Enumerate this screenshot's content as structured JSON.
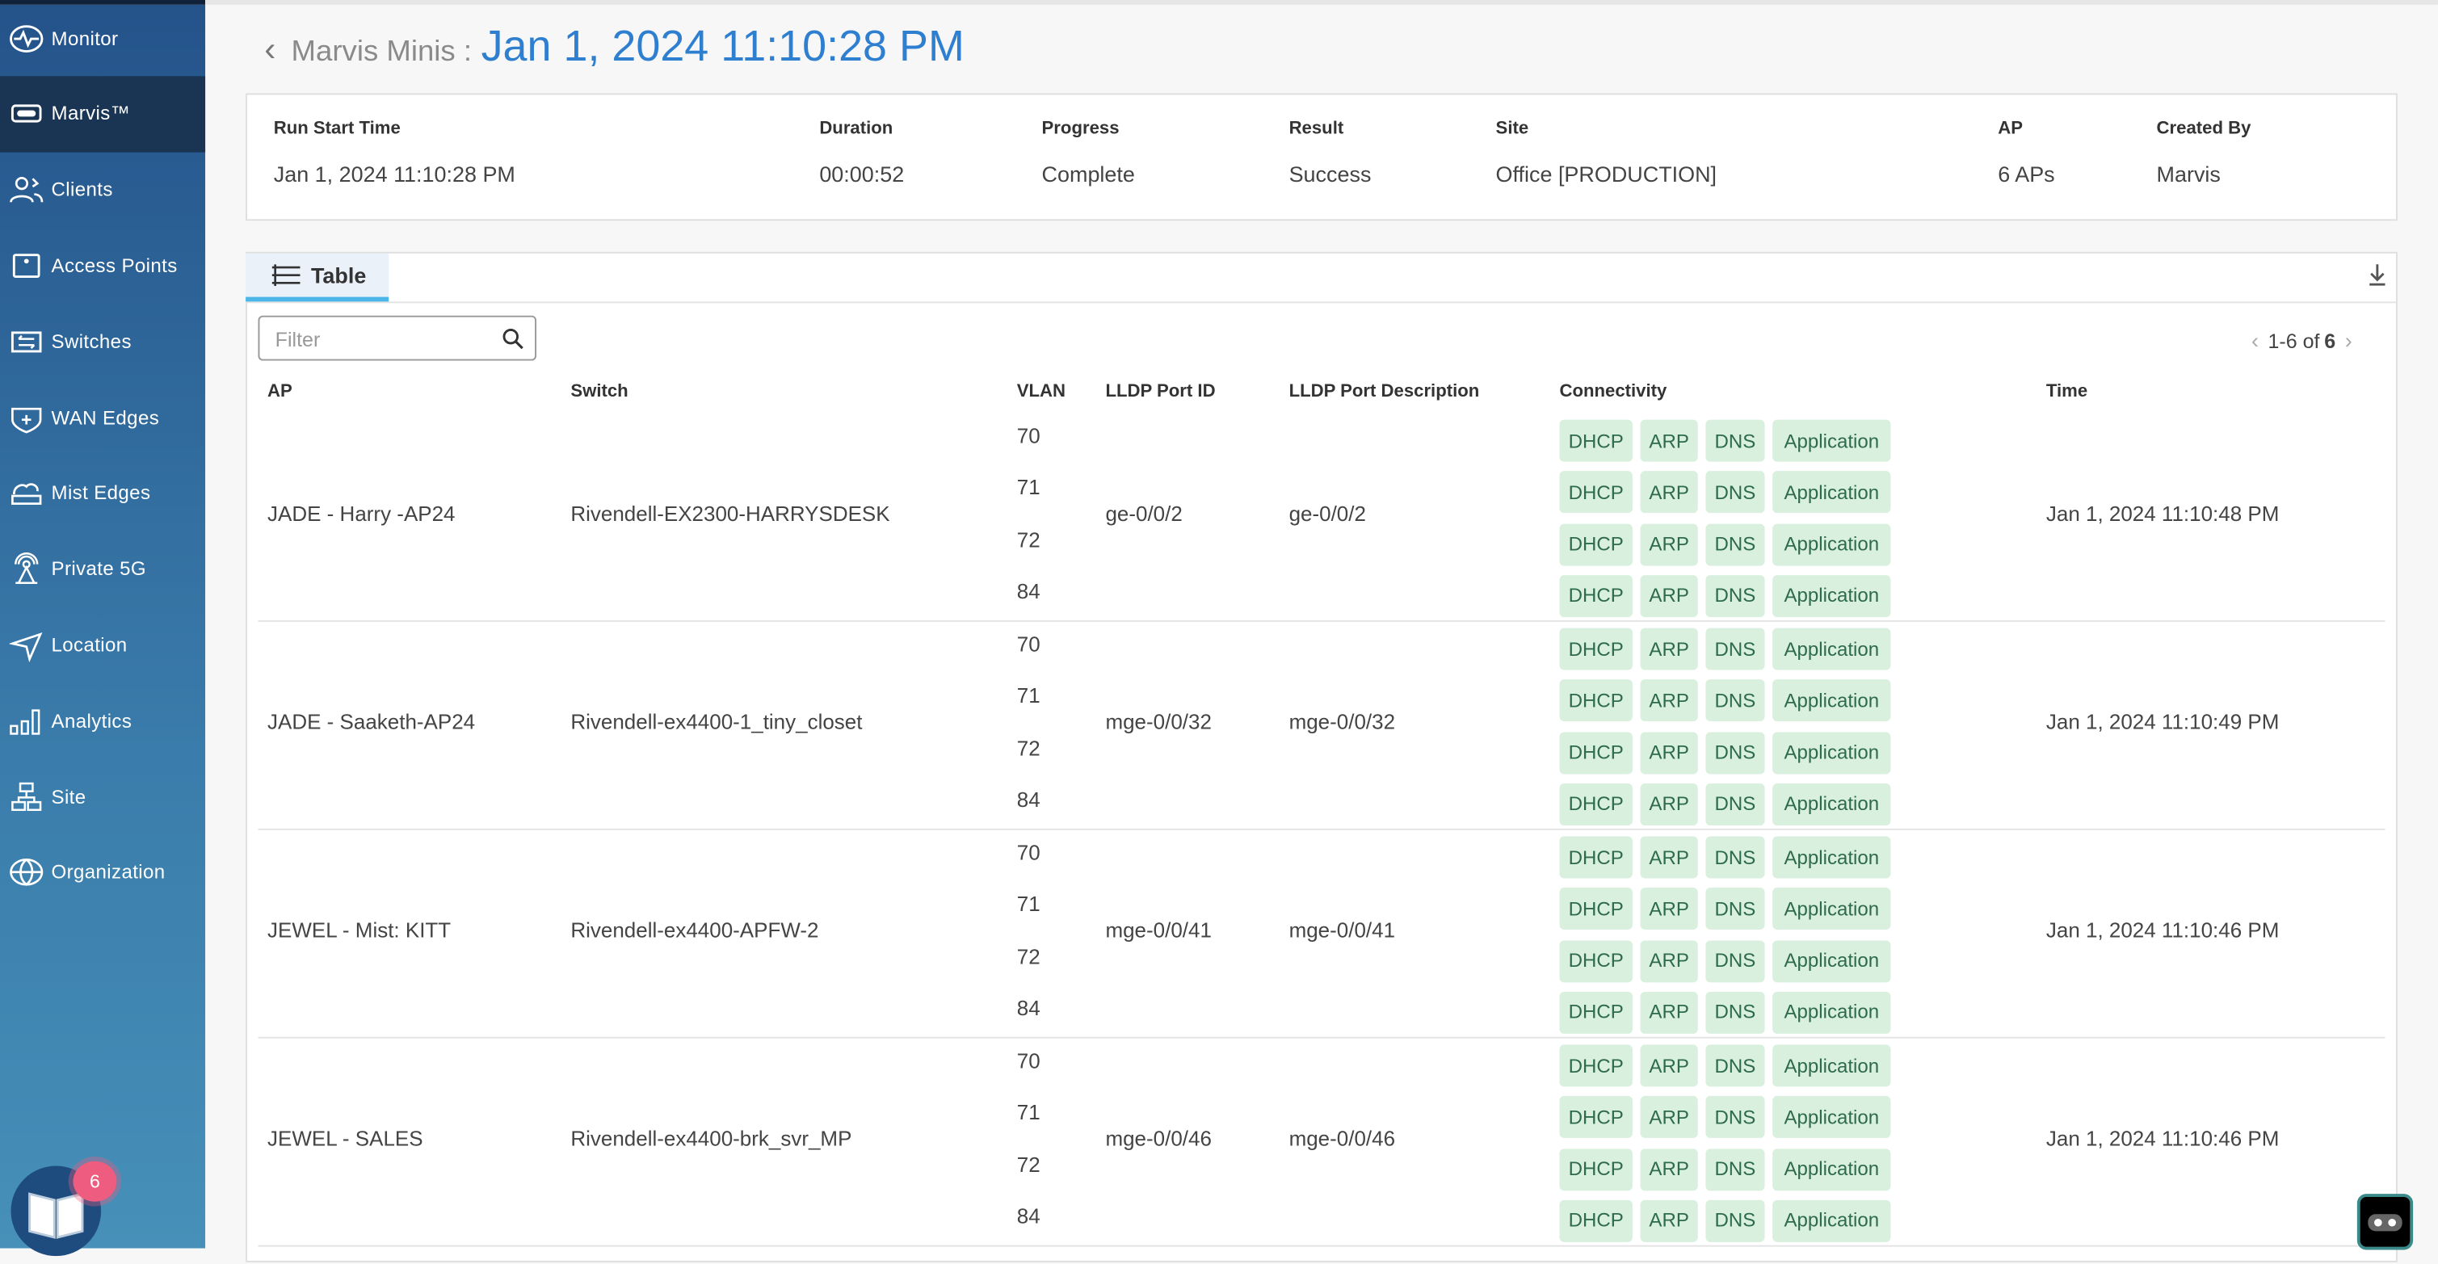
{
  "sidebar": {
    "items": [
      {
        "label": "Monitor",
        "icon": "monitor-icon"
      },
      {
        "label": "Marvis™",
        "icon": "marvis-icon",
        "active": true
      },
      {
        "label": "Clients",
        "icon": "clients-icon"
      },
      {
        "label": "Access Points",
        "icon": "access-point-icon"
      },
      {
        "label": "Switches",
        "icon": "switches-icon"
      },
      {
        "label": "WAN Edges",
        "icon": "wan-edges-icon"
      },
      {
        "label": "Mist Edges",
        "icon": "mist-edges-icon"
      },
      {
        "label": "Private 5G",
        "icon": "private-5g-icon"
      },
      {
        "label": "Location",
        "icon": "location-icon"
      },
      {
        "label": "Analytics",
        "icon": "analytics-icon"
      },
      {
        "label": "Site",
        "icon": "site-icon"
      },
      {
        "label": "Organization",
        "icon": "organization-icon"
      }
    ],
    "notification_count": "6"
  },
  "header": {
    "breadcrumb": "Marvis Minis :",
    "title": "Jan 1, 2024 11:10:28 PM"
  },
  "summary": [
    {
      "label": "Run Start Time",
      "value": "Jan 1, 2024 11:10:28 PM"
    },
    {
      "label": "Duration",
      "value": "00:00:52"
    },
    {
      "label": "Progress",
      "value": "Complete"
    },
    {
      "label": "Result",
      "value": "Success"
    },
    {
      "label": "Site",
      "value": "Office [PRODUCTION]"
    },
    {
      "label": "AP",
      "value": "6 APs"
    },
    {
      "label": "Created By",
      "value": "Marvis"
    }
  ],
  "table": {
    "tab_label": "Table",
    "filter_placeholder": "Filter",
    "pagination": {
      "range": "1-6 of",
      "total": "6"
    },
    "columns": [
      "AP",
      "Switch",
      "VLAN",
      "LLDP Port ID",
      "LLDP Port Description",
      "Connectivity",
      "Time"
    ],
    "chips": [
      "DHCP",
      "ARP",
      "DNS",
      "Application"
    ],
    "chip_colors": {
      "bg": "#d9f0df",
      "text": "#2e6b4a"
    },
    "rows": [
      {
        "ap": "JADE - Harry -AP24",
        "switch": "Rivendell-EX2300-HARRYSDESK",
        "vlans": [
          "70",
          "71",
          "72",
          "84"
        ],
        "port_id": "ge-0/0/2",
        "port_desc": "ge-0/0/2",
        "time": "Jan 1, 2024 11:10:48 PM"
      },
      {
        "ap": "JADE - Saaketh-AP24",
        "switch": "Rivendell-ex4400-1_tiny_closet",
        "vlans": [
          "70",
          "71",
          "72",
          "84"
        ],
        "port_id": "mge-0/0/32",
        "port_desc": "mge-0/0/32",
        "time": "Jan 1, 2024 11:10:49 PM"
      },
      {
        "ap": "JEWEL - Mist: KITT",
        "switch": "Rivendell-ex4400-APFW-2",
        "vlans": [
          "70",
          "71",
          "72",
          "84"
        ],
        "port_id": "mge-0/0/41",
        "port_desc": "mge-0/0/41",
        "time": "Jan 1, 2024 11:10:46 PM"
      },
      {
        "ap": "JEWEL - SALES",
        "switch": "Rivendell-ex4400-brk_svr_MP",
        "vlans": [
          "70",
          "71",
          "72",
          "84"
        ],
        "port_id": "mge-0/0/46",
        "port_desc": "mge-0/0/46",
        "time": "Jan 1, 2024 11:10:46 PM"
      }
    ]
  }
}
